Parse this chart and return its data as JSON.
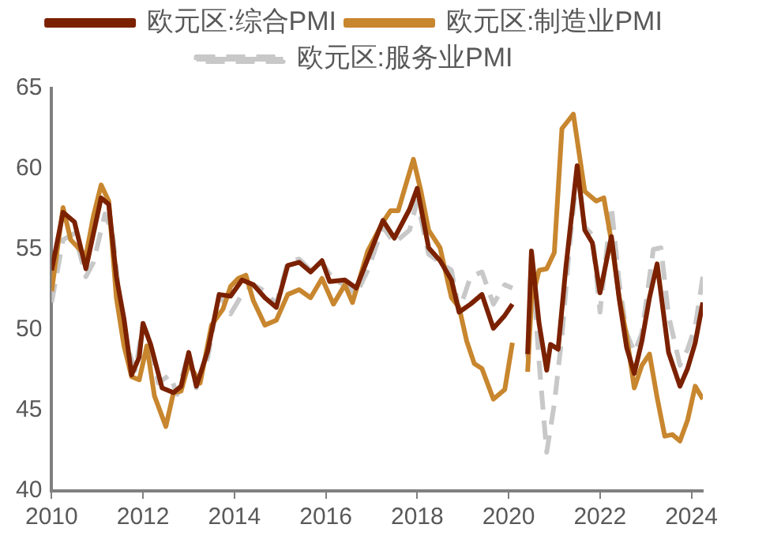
{
  "chart_data": {
    "type": "line",
    "xlim": [
      "2010-01",
      "2024-04"
    ],
    "xticks": [
      "2010",
      "2012",
      "2014",
      "2016",
      "2018",
      "2020",
      "2022",
      "2024"
    ],
    "ylim": [
      40,
      65
    ],
    "yticks": [
      40,
      45,
      50,
      55,
      60,
      65
    ],
    "legend": "top",
    "grid": false,
    "marker": "none",
    "series": [
      {
        "name": "欧元区:综合PMI",
        "color": "#7b2100",
        "line_style": "solid",
        "x": [
          "2010-01",
          "2010-04",
          "2010-07",
          "2010-10",
          "2011-02",
          "2011-04",
          "2011-06",
          "2011-08",
          "2011-10",
          "2011-12",
          "2012-01",
          "2012-03",
          "2012-06",
          "2012-09",
          "2012-11",
          "2013-01",
          "2013-03",
          "2013-06",
          "2013-09",
          "2013-12",
          "2014-03",
          "2014-06",
          "2014-09",
          "2014-12",
          "2015-03",
          "2015-06",
          "2015-09",
          "2015-12",
          "2016-02",
          "2016-06",
          "2016-09",
          "2016-12",
          "2017-04",
          "2017-07",
          "2017-11",
          "2018-01",
          "2018-04",
          "2018-07",
          "2018-10",
          "2018-12",
          "2019-03",
          "2019-06",
          "2019-09",
          "2019-12",
          "2020-02",
          "2020-04",
          "2020-06",
          "2020-07",
          "2020-09",
          "2020-11",
          "2020-12",
          "2021-02",
          "2021-04",
          "2021-07",
          "2021-09",
          "2021-11",
          "2022-01",
          "2022-04",
          "2022-06",
          "2022-08",
          "2022-10",
          "2022-12",
          "2023-02",
          "2023-04",
          "2023-07",
          "2023-10",
          "2023-12",
          "2024-02",
          "2024-04"
        ],
        "values": [
          53.7,
          57.3,
          56.7,
          53.8,
          58.2,
          57.8,
          53.3,
          50.7,
          47.2,
          48.3,
          50.4,
          49.1,
          46.4,
          46.1,
          46.5,
          48.6,
          46.5,
          48.7,
          52.2,
          52.1,
          53.1,
          52.8,
          52.0,
          51.4,
          54.0,
          54.2,
          53.6,
          54.3,
          53.0,
          53.1,
          52.6,
          54.4,
          56.8,
          55.7,
          57.5,
          58.8,
          55.1,
          54.3,
          53.1,
          51.1,
          51.6,
          52.2,
          50.1,
          50.9,
          51.6,
          null,
          48.5,
          54.9,
          50.4,
          47.5,
          49.1,
          48.8,
          53.8,
          60.2,
          56.2,
          55.4,
          52.3,
          55.8,
          52.0,
          48.9,
          47.3,
          49.3,
          52.0,
          54.1,
          48.6,
          46.5,
          47.6,
          49.2,
          51.7
        ]
      },
      {
        "name": "欧元区:制造业PMI",
        "color": "#c8862e",
        "line_style": "solid",
        "x": [
          "2010-01",
          "2010-04",
          "2010-06",
          "2010-08",
          "2010-10",
          "2010-12",
          "2011-02",
          "2011-04",
          "2011-06",
          "2011-08",
          "2011-10",
          "2011-12",
          "2012-02",
          "2012-04",
          "2012-07",
          "2012-09",
          "2012-11",
          "2013-01",
          "2013-04",
          "2013-07",
          "2013-10",
          "2013-12",
          "2014-02",
          "2014-04",
          "2014-06",
          "2014-09",
          "2014-12",
          "2015-03",
          "2015-06",
          "2015-09",
          "2015-12",
          "2016-03",
          "2016-06",
          "2016-08",
          "2016-12",
          "2017-04",
          "2017-06",
          "2017-08",
          "2017-12",
          "2018-02",
          "2018-04",
          "2018-07",
          "2018-10",
          "2018-12",
          "2019-02",
          "2019-04",
          "2019-06",
          "2019-09",
          "2019-12",
          "2020-02",
          "2020-04",
          "2020-06",
          "2020-07",
          "2020-09",
          "2020-11",
          "2021-01",
          "2021-03",
          "2021-05",
          "2021-06",
          "2021-09",
          "2021-12",
          "2022-02",
          "2022-04",
          "2022-06",
          "2022-08",
          "2022-10",
          "2022-12",
          "2023-02",
          "2023-04",
          "2023-06",
          "2023-08",
          "2023-10",
          "2023-12",
          "2024-02",
          "2024-04"
        ],
        "values": [
          52.4,
          57.6,
          55.6,
          55.1,
          54.6,
          57.1,
          59.0,
          58.0,
          52.0,
          49.0,
          47.1,
          46.9,
          49.0,
          45.9,
          44.0,
          46.1,
          46.2,
          47.9,
          46.7,
          50.3,
          51.3,
          52.7,
          53.2,
          53.4,
          51.8,
          50.3,
          50.6,
          52.2,
          52.5,
          52.0,
          53.2,
          51.6,
          52.8,
          51.7,
          54.9,
          56.7,
          57.4,
          57.4,
          60.6,
          58.6,
          56.2,
          55.1,
          52.0,
          51.4,
          49.3,
          47.9,
          47.6,
          45.7,
          46.3,
          49.2,
          null,
          47.4,
          51.8,
          53.7,
          53.8,
          54.8,
          62.5,
          63.1,
          63.4,
          58.6,
          58.0,
          58.2,
          55.5,
          52.1,
          49.6,
          46.4,
          47.8,
          48.5,
          45.8,
          43.4,
          43.5,
          43.1,
          44.4,
          46.5,
          45.7
        ]
      },
      {
        "name": "欧元区:服务业PMI",
        "color": "#c8c8c8",
        "line_style": "dashed",
        "x": [
          "2010-01",
          "2010-04",
          "2010-07",
          "2010-10",
          "2010-12",
          "2011-03",
          "2011-05",
          "2011-07",
          "2011-09",
          "2011-11",
          "2012-01",
          "2012-03",
          "2012-05",
          "2012-08",
          "2012-10",
          "2013-01",
          "2013-03",
          "2013-06",
          "2013-09",
          "2013-12",
          "2014-03",
          "2014-06",
          "2014-09",
          "2014-12",
          "2015-03",
          "2015-06",
          "2015-09",
          "2015-12",
          "2016-03",
          "2016-06",
          "2016-09",
          "2016-12",
          "2017-04",
          "2017-07",
          "2017-11",
          "2018-01",
          "2018-04",
          "2018-07",
          "2018-10",
          "2018-12",
          "2019-03",
          "2019-06",
          "2019-09",
          "2019-12",
          "2020-02",
          "2020-04",
          "2020-06",
          "2020-07",
          "2020-09",
          "2020-11",
          "2021-01",
          "2021-03",
          "2021-05",
          "2021-07",
          "2021-09",
          "2021-11",
          "2022-01",
          "2022-04",
          "2022-06",
          "2022-08",
          "2022-10",
          "2022-12",
          "2023-03",
          "2023-05",
          "2023-07",
          "2023-10",
          "2023-12",
          "2024-02",
          "2024-04"
        ],
        "values": [
          51.7,
          55.6,
          56.0,
          53.3,
          54.2,
          57.2,
          56.0,
          51.6,
          48.8,
          47.5,
          50.4,
          49.2,
          46.7,
          47.2,
          46.0,
          48.6,
          46.4,
          48.3,
          52.2,
          51.0,
          52.2,
          52.8,
          52.4,
          51.6,
          54.2,
          54.4,
          53.7,
          54.2,
          53.1,
          52.8,
          52.2,
          53.7,
          56.4,
          55.4,
          56.2,
          58.0,
          54.7,
          54.2,
          53.7,
          51.2,
          53.3,
          53.6,
          51.6,
          52.8,
          52.6,
          null,
          48.3,
          54.7,
          48.0,
          42.4,
          45.4,
          49.6,
          55.2,
          59.8,
          56.4,
          55.9,
          51.1,
          57.7,
          53.0,
          49.8,
          48.6,
          49.8,
          55.0,
          55.1,
          50.9,
          47.8,
          48.8,
          50.2,
          53.3
        ]
      }
    ]
  }
}
